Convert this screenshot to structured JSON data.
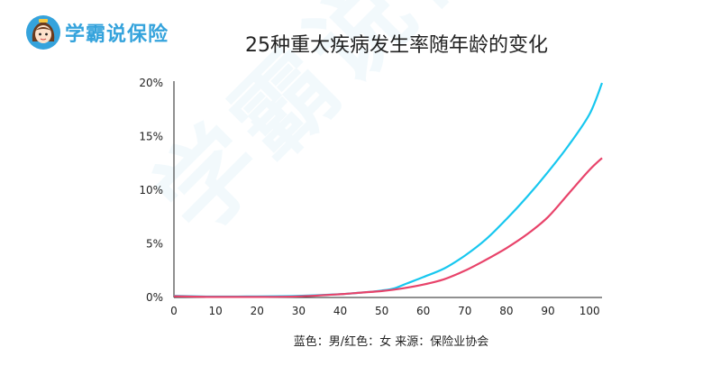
{
  "header": {
    "brand": "学霸说保险",
    "avatar_icon": "cartoon-girl-avatar-icon"
  },
  "watermark": "学霸说保险",
  "chart_data": {
    "type": "line",
    "title": "25种重大疾病发生率随年龄的变化",
    "xlabel": "",
    "ylabel": "",
    "x_ticks": [
      "0",
      "10",
      "20",
      "30",
      "40",
      "50",
      "60",
      "70",
      "80",
      "90",
      "100"
    ],
    "y_ticks": [
      "0%",
      "5%",
      "10%",
      "15%",
      "20%"
    ],
    "xlim": [
      0,
      103
    ],
    "ylim": [
      0,
      20
    ],
    "grid": false,
    "legend": "bottom",
    "source_note": "蓝色：男/红色：女    来源：保险业协会",
    "series": [
      {
        "color": "#17c7ef",
        "x": [
          0,
          10,
          20,
          30,
          40,
          45,
          50,
          53,
          56,
          60,
          65,
          70,
          75,
          80,
          85,
          90,
          95,
          100,
          103
        ],
        "y": [
          0.15,
          0.08,
          0.1,
          0.15,
          0.3,
          0.45,
          0.65,
          0.85,
          1.3,
          1.9,
          2.7,
          3.9,
          5.4,
          7.3,
          9.4,
          11.7,
          14.2,
          17.1,
          20.0
        ]
      },
      {
        "color": "#e8436a",
        "x": [
          0,
          10,
          20,
          30,
          40,
          45,
          50,
          55,
          60,
          65,
          70,
          75,
          80,
          85,
          90,
          95,
          100,
          103
        ],
        "y": [
          0.12,
          0.05,
          0.05,
          0.1,
          0.3,
          0.45,
          0.6,
          0.85,
          1.2,
          1.7,
          2.5,
          3.5,
          4.6,
          5.9,
          7.5,
          9.7,
          11.9,
          13.0
        ]
      }
    ]
  }
}
